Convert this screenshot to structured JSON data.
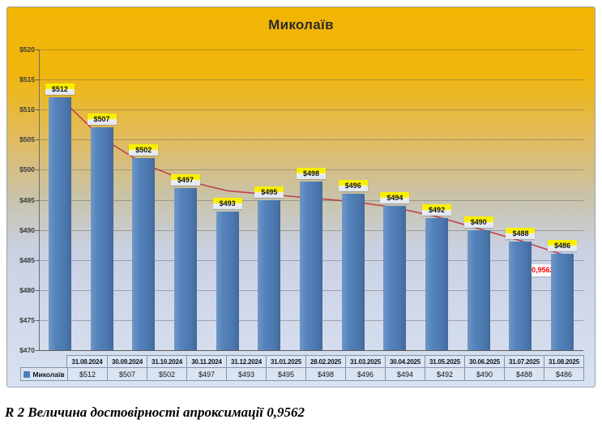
{
  "caption": "R 2 Величина достовірності апроксимації 0,9562",
  "chart_data": {
    "type": "bar",
    "title": "Миколаїв",
    "categories": [
      "31.08.2024",
      "30.09.2024",
      "31.10.2024",
      "30.11.2024",
      "31.12.2024",
      "31.01.2025",
      "28.02.2025",
      "31.03.2025",
      "30.04.2025",
      "31.05.2025",
      "30.06.2025",
      "31.07.2025",
      "31.08.2025"
    ],
    "series": [
      {
        "name": "Миколаїв",
        "values": [
          512,
          507,
          502,
          497,
          493,
          495,
          498,
          496,
          494,
          492,
          490,
          488,
          486
        ]
      }
    ],
    "value_prefix": "$",
    "xlabel": "",
    "ylabel": "",
    "ylim": [
      470,
      520
    ],
    "ytick_step": 5,
    "grid": true,
    "legend_position": "data-table-left",
    "trendline": {
      "type": "polynomial",
      "r2_label": "R² = 0,9562",
      "values": [
        512.0,
        505.3,
        501.0,
        498.2,
        496.5,
        495.9,
        495.3,
        494.7,
        493.7,
        492.2,
        490.2,
        488.2,
        485.9
      ]
    },
    "colors": {
      "bar": "#4E7CB8",
      "trend_line": "#C2404E",
      "r2_text": "#FF0000",
      "label_highlight": "#F9F000",
      "background_top": "#F3B503",
      "background_bottom": "#D9E2F1",
      "table_fill": "#DBE4F1",
      "table_border": "#8494B0"
    }
  }
}
